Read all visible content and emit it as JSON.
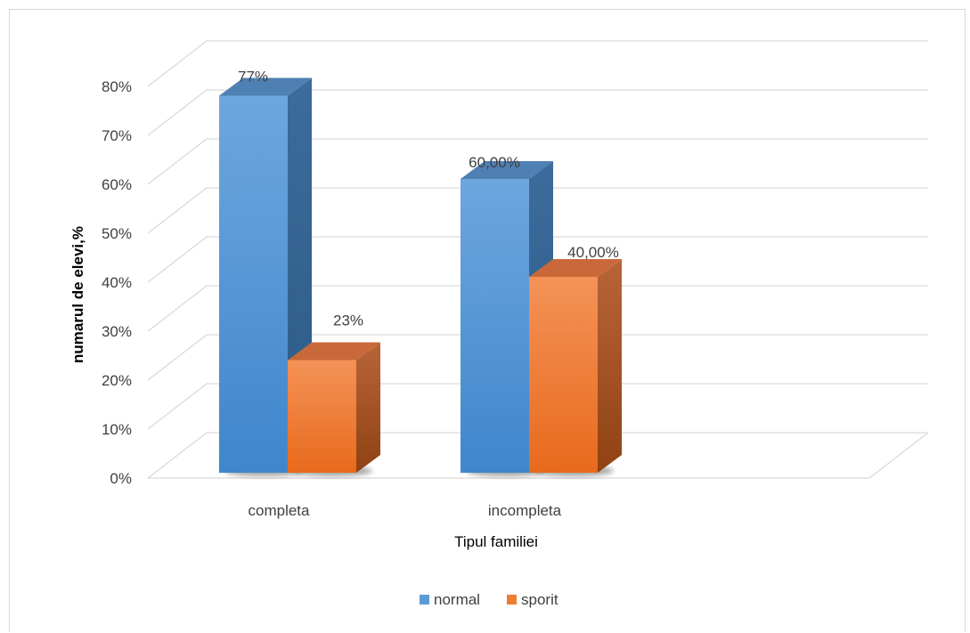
{
  "chart_data": {
    "type": "bar",
    "categories": [
      "completa",
      "incompleta"
    ],
    "series": [
      {
        "name": "normal",
        "values": [
          0.77,
          0.6
        ],
        "labels": [
          "77%",
          "60,00%"
        ],
        "color": "#5b9bd5"
      },
      {
        "name": "sporit",
        "values": [
          0.23,
          0.4
        ],
        "labels": [
          "23%",
          "40,00%"
        ],
        "color": "#ed7d31"
      }
    ],
    "y_ticks": [
      "0%",
      "10%",
      "20%",
      "30%",
      "40%",
      "50%",
      "60%",
      "70%",
      "80%"
    ],
    "xlabel": "Tipul familiei",
    "ylabel": "numarul de elevi,%",
    "ylim": [
      0,
      0.8
    ],
    "grid": true,
    "legend_position": "bottom",
    "style": "3d-clustered-column"
  }
}
